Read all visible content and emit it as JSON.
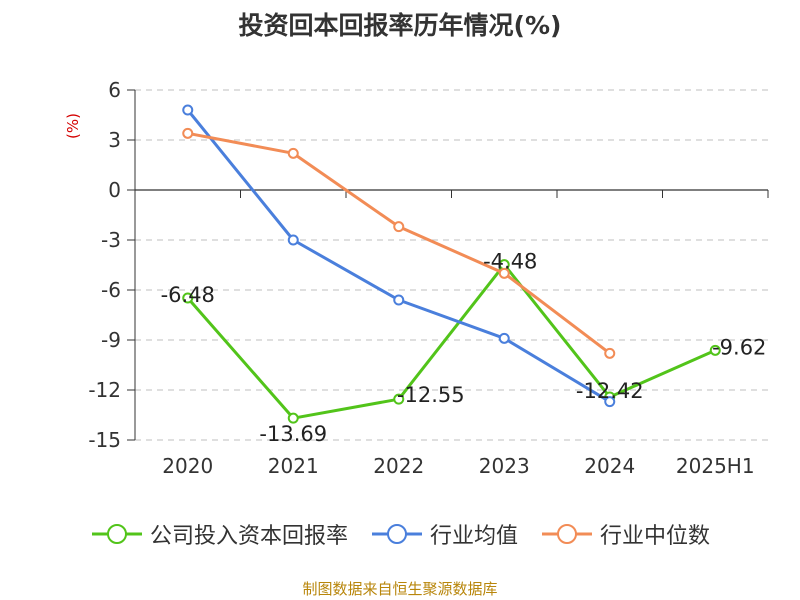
{
  "chart_data": {
    "type": "line",
    "title": "投资回本回报率历年情况(%)",
    "ylabel": "(%)",
    "xlabel": "",
    "categories": [
      "2020",
      "2021",
      "2022",
      "2023",
      "2024",
      "2025H1"
    ],
    "ylim": [
      -15,
      6
    ],
    "yticks": [
      6,
      3,
      0,
      -3,
      -6,
      -9,
      -12,
      -15
    ],
    "grid": true,
    "legend_position": "bottom",
    "series": [
      {
        "name": "公司投入资本回报率",
        "color": "#52c41a",
        "values": [
          -6.48,
          -13.69,
          -12.55,
          -4.48,
          -12.42,
          -9.62
        ],
        "labels": [
          "-6.48",
          "-13.69",
          "-12.55",
          "-4.48",
          "-12.42",
          "-9.62"
        ]
      },
      {
        "name": "行业均值",
        "color": "#4a7fdc",
        "values": [
          4.8,
          -3.0,
          -6.6,
          -8.9,
          -12.7,
          null
        ]
      },
      {
        "name": "行业中位数",
        "color": "#f28c56",
        "values": [
          3.4,
          2.2,
          -2.2,
          -5.0,
          -9.8,
          null
        ]
      }
    ]
  },
  "source": "制图数据来自恒生聚源数据库"
}
